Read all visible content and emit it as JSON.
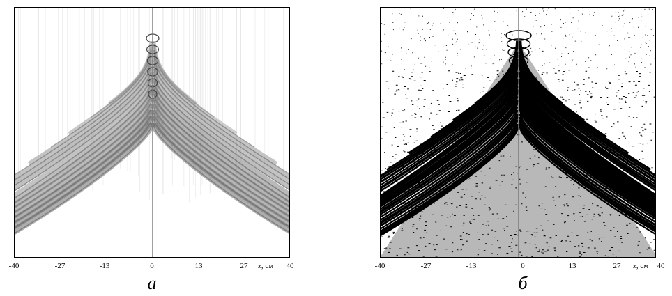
{
  "panels": [
    {
      "id": "a",
      "caption": "а",
      "axis_unit_label": "z, см",
      "style": "grayscale",
      "tick_labels": [
        "-40",
        "-27",
        "-13",
        "0",
        "13",
        "27",
        "40"
      ]
    },
    {
      "id": "b",
      "caption": "б",
      "axis_unit_label": "z, см",
      "style": "binary",
      "tick_labels": [
        "-40",
        "-27",
        "-13",
        "0",
        "13",
        "27",
        "40"
      ]
    }
  ],
  "x_axis": {
    "min": -40,
    "max": 40,
    "ticks": [
      -40,
      -27,
      -13,
      0,
      13,
      27,
      40
    ]
  }
}
